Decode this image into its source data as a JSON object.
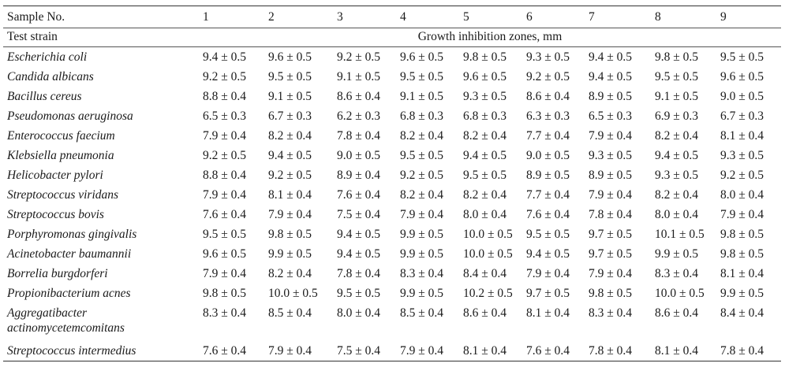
{
  "table": {
    "header_sample": "Sample No.",
    "sample_numbers": [
      "1",
      "2",
      "3",
      "4",
      "5",
      "6",
      "7",
      "8",
      "9"
    ],
    "header_strain": "Test strain",
    "header_zones": "Growth inhibition zones, mm",
    "rows": [
      {
        "strain": "Escherichia coli",
        "values": [
          "9.4 ± 0.5",
          "9.6 ± 0.5",
          "9.2 ± 0.5",
          "9.6 ± 0.5",
          "9.8 ± 0.5",
          "9.3 ± 0.5",
          "9.4 ± 0.5",
          "9.8 ± 0.5",
          "9.5 ± 0.5"
        ]
      },
      {
        "strain": "Candida albicans",
        "values": [
          "9.2 ± 0.5",
          "9.5 ± 0.5",
          "9.1 ± 0.5",
          "9.5 ± 0.5",
          "9.6 ± 0.5",
          "9.2 ± 0.5",
          "9.4 ± 0.5",
          "9.5 ± 0.5",
          "9.6 ± 0.5"
        ]
      },
      {
        "strain": "Bacillus cereus",
        "values": [
          "8.8 ± 0.4",
          "9.1 ± 0.5",
          "8.6 ± 0.4",
          "9.1 ± 0.5",
          "9.3 ± 0.5",
          "8.6 ± 0.4",
          "8.9 ± 0.5",
          "9.1 ± 0.5",
          "9.0 ± 0.5"
        ]
      },
      {
        "strain": "Pseudomonas aeruginosa",
        "values": [
          "6.5 ± 0.3",
          "6.7 ± 0.3",
          "6.2 ± 0.3",
          "6.8 ± 0.3",
          "6.8 ± 0.3",
          "6.3 ± 0.3",
          "6.5 ± 0.3",
          "6.9 ± 0.3",
          "6.7 ± 0.3"
        ]
      },
      {
        "strain": "Enterococcus faecium",
        "values": [
          "7.9 ± 0.4",
          "8.2 ± 0.4",
          "7.8 ± 0.4",
          "8.2 ± 0.4",
          "8.2 ± 0.4",
          "7.7 ± 0.4",
          "7.9 ± 0.4",
          "8.2 ± 0.4",
          "8.1 ± 0.4"
        ]
      },
      {
        "strain": "Klebsiella pneumonia",
        "values": [
          "9.2 ± 0.5",
          "9.4 ± 0.5",
          "9.0 ± 0.5",
          "9.5 ± 0.5",
          "9.4 ± 0.5",
          "9.0 ± 0.5",
          "9.3 ± 0.5",
          "9.4 ± 0.5",
          "9.3 ± 0.5"
        ]
      },
      {
        "strain": "Helicobacter pylori",
        "values": [
          "8.8 ± 0.4",
          "9.2 ± 0.5",
          "8.9 ± 0.4",
          "9.2 ± 0.5",
          "9.5 ± 0.5",
          "8.9 ± 0.5",
          "8.9 ± 0.5",
          "9.3 ± 0.5",
          "9.2 ± 0.5"
        ]
      },
      {
        "strain": "Streptococcus viridans",
        "values": [
          "7.9 ± 0.4",
          "8.1 ± 0.4",
          "7.6 ± 0.4",
          "8.2 ± 0.4",
          "8.2 ± 0.4",
          "7.7 ± 0.4",
          "7.9 ± 0.4",
          "8.2 ± 0.4",
          "8.0 ± 0.4"
        ]
      },
      {
        "strain": "Streptococcus bovis",
        "values": [
          "7.6 ± 0.4",
          "7.9 ± 0.4",
          "7.5 ± 0.4",
          "7.9 ± 0.4",
          "8.0 ± 0.4",
          "7.6 ± 0.4",
          "7.8 ± 0.4",
          "8.0 ± 0.4",
          "7.9 ± 0.4"
        ]
      },
      {
        "strain": "Porphyromonas gingivalis",
        "values": [
          "9.5 ± 0.5",
          "9.8 ± 0.5",
          "9.4 ± 0.5",
          "9.9 ± 0.5",
          "10.0 ± 0.5",
          "9.5 ± 0.5",
          "9.7 ± 0.5",
          "10.1 ± 0.5",
          "9.8 ± 0.5"
        ]
      },
      {
        "strain": "Acinetobacter baumannii",
        "values": [
          "9.6 ± 0.5",
          "9.9 ± 0.5",
          "9.4 ± 0.5",
          "9.9 ± 0.5",
          "10.0 ± 0.5",
          "9.4 ± 0.5",
          "9.7 ± 0.5",
          "9.9 ± 0.5",
          "9.8 ± 0.5"
        ]
      },
      {
        "strain": "Borrelia burgdorferi",
        "values": [
          "7.9 ± 0.4",
          "8.2 ± 0.4",
          "7.8 ± 0.4",
          "8.3 ± 0.4",
          "8.4 ± 0.4",
          "7.9 ± 0.4",
          "7.9 ± 0.4",
          "8.3 ± 0.4",
          "8.1 ± 0.4"
        ]
      },
      {
        "strain": "Propionibacterium acnes",
        "values": [
          "9.8 ± 0.5",
          "10.0 ± 0.5",
          "9.5 ± 0.5",
          "9.9 ± 0.5",
          "10.2 ± 0.5",
          "9.7 ± 0.5",
          "9.8 ± 0.5",
          "10.0 ± 0.5",
          "9.9 ± 0.5"
        ]
      },
      {
        "strain": "Aggregatibacter actinomycetemcomitans",
        "values": [
          "8.3 ± 0.4",
          "8.5 ± 0.4",
          "8.0 ± 0.4",
          "8.5 ± 0.4",
          "8.6 ± 0.4",
          "8.1 ± 0.4",
          "8.3 ± 0.4",
          "8.6 ± 0.4",
          "8.4 ± 0.4"
        ]
      },
      {
        "strain": "Streptococcus intermedius",
        "values": [
          "7.6 ± 0.4",
          "7.9 ± 0.4",
          "7.5 ± 0.4",
          "7.9 ± 0.4",
          "8.1 ± 0.4",
          "7.6 ± 0.4",
          "7.8 ± 0.4",
          "8.1 ± 0.4",
          "7.8 ± 0.4"
        ]
      }
    ]
  }
}
